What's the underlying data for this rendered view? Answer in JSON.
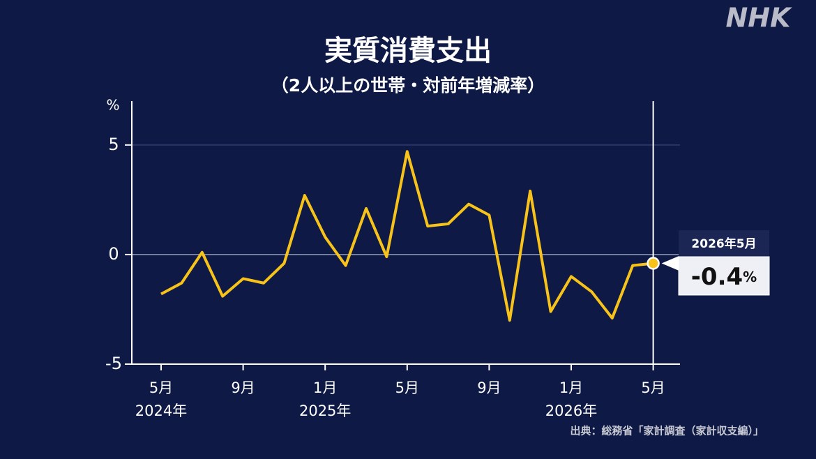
{
  "chart_data": {
    "type": "line",
    "title": "実質消費支出",
    "subtitle": "（2人以上の世帯・対前年増減率）",
    "y_label": "%",
    "logo": "NHK",
    "source": "出典：総務省「家計調査（家計収支編）」",
    "categories": [
      "5月",
      null,
      null,
      null,
      "9月",
      null,
      null,
      null,
      "1月",
      null,
      null,
      null,
      "5月",
      null,
      null,
      null,
      "9月",
      null,
      null,
      null,
      "1月",
      null,
      null,
      null,
      "5月"
    ],
    "category_years": [
      "2024年",
      null,
      null,
      null,
      null,
      null,
      null,
      null,
      "2025年",
      null,
      null,
      null,
      null,
      null,
      null,
      null,
      null,
      null,
      null,
      null,
      "2026年",
      null,
      null,
      null,
      null
    ],
    "series": [
      {
        "name": "実質消費支出",
        "color": "#f7c31a",
        "values": [
          -1.8,
          -1.3,
          0.1,
          -1.9,
          -1.1,
          -1.3,
          -0.4,
          2.7,
          0.8,
          -0.5,
          2.1,
          -0.1,
          4.7,
          1.3,
          1.4,
          2.3,
          1.8,
          -3.0,
          2.9,
          -2.6,
          -1.0,
          -1.7,
          -2.9,
          -0.5,
          -0.4
        ]
      }
    ],
    "ylim": [
      -5,
      7
    ],
    "yticks": [
      -5,
      0,
      5
    ],
    "grid": true,
    "callout": {
      "label": "2026年5月",
      "value": -0.4,
      "unit": "%"
    }
  }
}
